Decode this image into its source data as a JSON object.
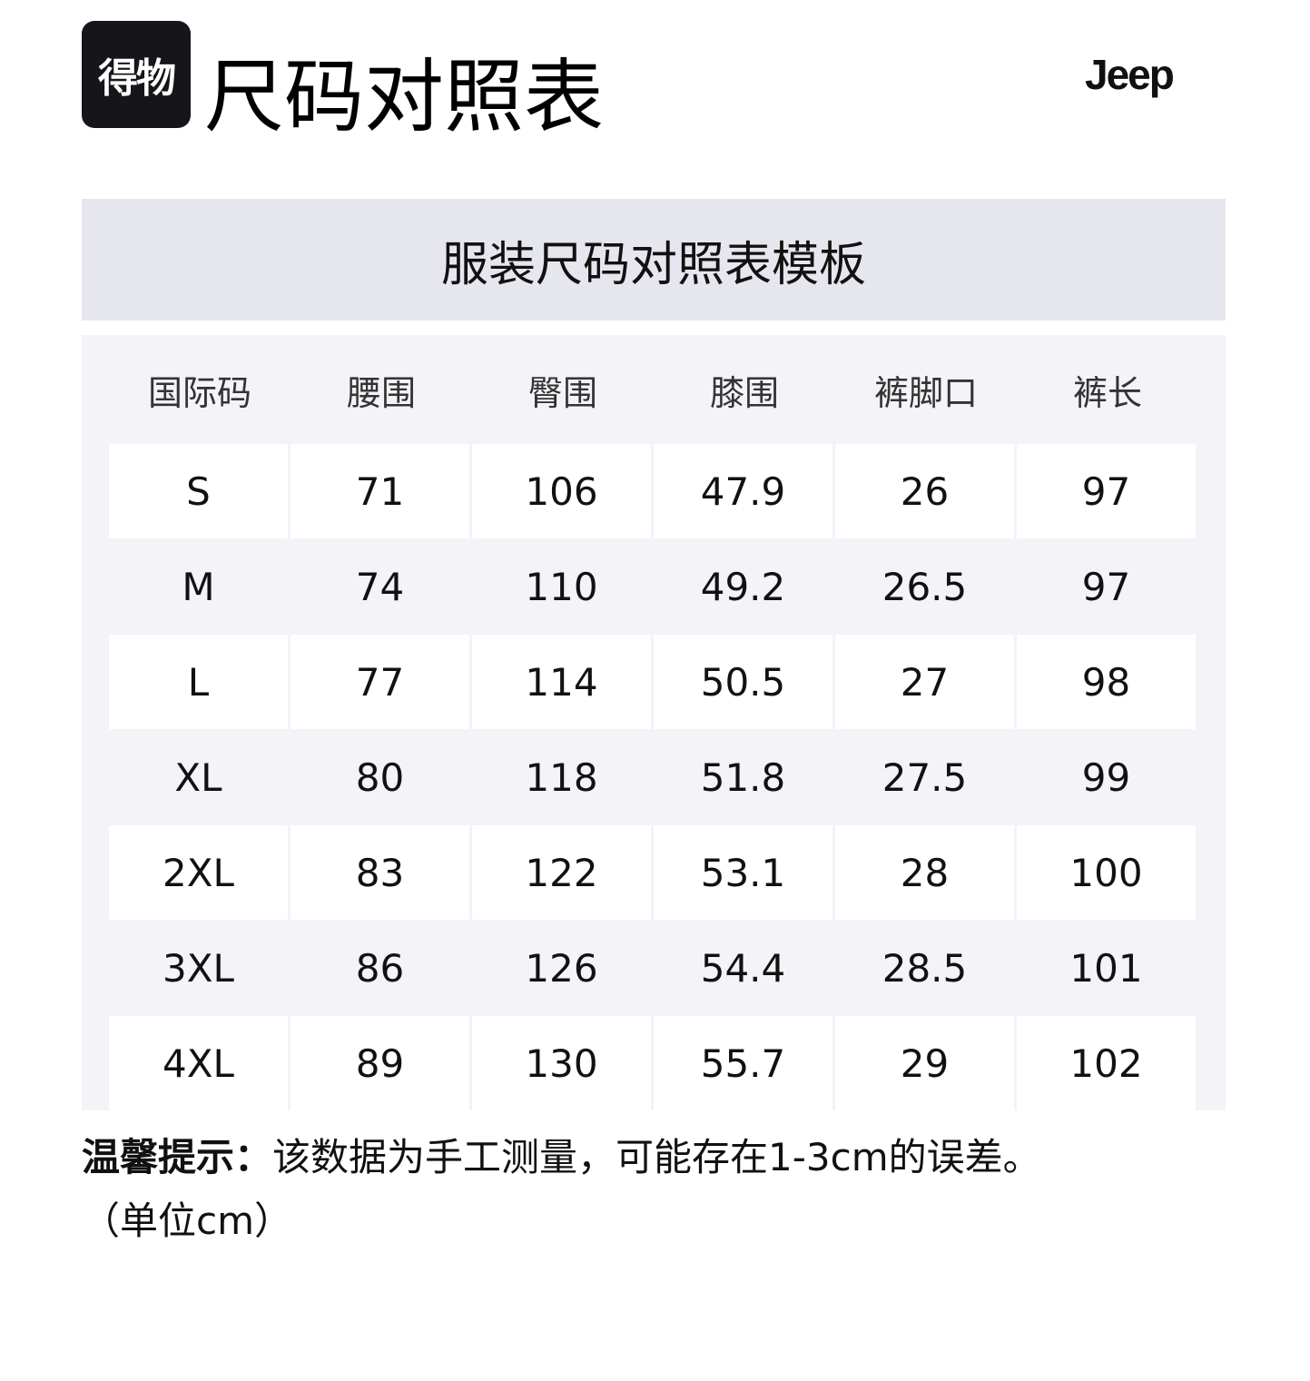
{
  "header": {
    "logo_text": "得物",
    "title": "尺码对照表",
    "brand": "Jeep"
  },
  "table": {
    "caption": "服装尺码对照表模板",
    "columns": [
      "国际码",
      "腰围",
      "臀围",
      "膝围",
      "裤脚口",
      "裤长"
    ],
    "rows": [
      [
        "S",
        "71",
        "106",
        "47.9",
        "26",
        "97"
      ],
      [
        "M",
        "74",
        "110",
        "49.2",
        "26.5",
        "97"
      ],
      [
        "L",
        "77",
        "114",
        "50.5",
        "27",
        "98"
      ],
      [
        "XL",
        "80",
        "118",
        "51.8",
        "27.5",
        "99"
      ],
      [
        "2XL",
        "83",
        "122",
        "53.1",
        "28",
        "100"
      ],
      [
        "3XL",
        "86",
        "126",
        "54.4",
        "28.5",
        "101"
      ],
      [
        "4XL",
        "89",
        "130",
        "55.7",
        "29",
        "102"
      ]
    ]
  },
  "note": {
    "label": "温馨提示：",
    "text": "该数据为手工测量，可能存在1-3cm的误差。",
    "unit": "（单位cm）"
  }
}
